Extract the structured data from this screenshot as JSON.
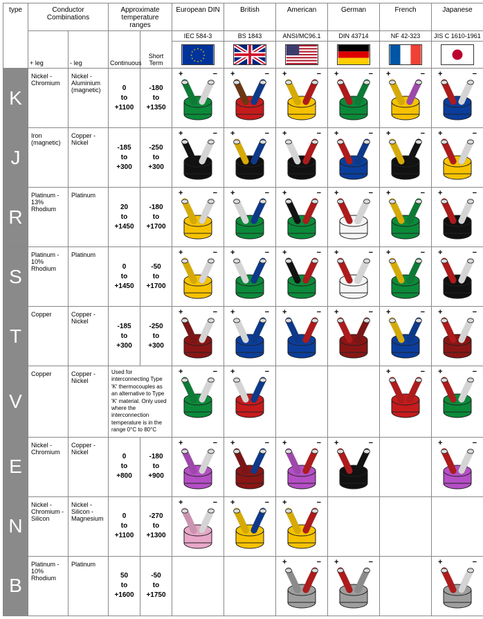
{
  "headers": {
    "type": "type",
    "conductor": "Conductor\nCombinations",
    "leg_pos": "+ leg",
    "leg_neg": "- leg",
    "temp": "Approximate\ntemperature\nranges",
    "temp_cont": "Continuous",
    "temp_short": "Short\nTerm",
    "standards": [
      {
        "name": "European DIN",
        "code": "IEC 584-3",
        "flag": "eu"
      },
      {
        "name": "British",
        "code": "BS 1843",
        "flag": "uk"
      },
      {
        "name": "American",
        "code": "ANSI/MC96.1",
        "flag": "us"
      },
      {
        "name": "German",
        "code": "DIN 43714",
        "flag": "de"
      },
      {
        "name": "French",
        "code": "NF 42-323",
        "flag": "fr"
      },
      {
        "name": "Japanese",
        "code": "JIS C 1610-1961",
        "flag": "jp"
      }
    ]
  },
  "colors": {
    "green": "#0b8a3a",
    "red": "#c61b1c",
    "darkred": "#8a1515",
    "yellow": "#f6c200",
    "blue": "#0b3e9c",
    "darkblue": "#0a2f6e",
    "black": "#111111",
    "white": "#f4f4f4",
    "brown": "#7a3b12",
    "orange": "#e06a00",
    "violet": "#b44fc4",
    "pink": "#e8a7c8",
    "grey": "#9e9e9e",
    "none": "transparent"
  },
  "flags": {
    "eu": {
      "bg": "#003399",
      "stars": "#ffcc00"
    },
    "uk": {
      "bg": "#00247d",
      "cross": "#ffffff",
      "red": "#cf142b"
    },
    "us": {
      "blue": "#3c3b6e",
      "red": "#b22234",
      "white": "#ffffff"
    },
    "de": {
      "top": "#000000",
      "mid": "#dd0000",
      "bot": "#ffce00"
    },
    "fr": {
      "l": "#0055a4",
      "m": "#ffffff",
      "r": "#ef4135"
    },
    "jp": {
      "bg": "#ffffff",
      "dot": "#bc002d"
    }
  },
  "rows": [
    {
      "type": "K",
      "cond_pos": "Nickel - Chromium",
      "cond_neg": "Nickel - Aluminium (magnetic)",
      "temp_cont": "0\nto\n+1100",
      "temp_short": "-180\nto\n+1350",
      "wires": [
        {
          "sheath": "green",
          "pos": "green",
          "neg": "white"
        },
        {
          "sheath": "red",
          "pos": "brown",
          "neg": "blue"
        },
        {
          "sheath": "yellow",
          "pos": "yellow",
          "neg": "red"
        },
        {
          "sheath": "green",
          "pos": "red",
          "neg": "green"
        },
        {
          "sheath": "yellow",
          "pos": "yellow",
          "neg": "violet"
        },
        {
          "sheath": "blue",
          "pos": "red",
          "neg": "white"
        }
      ]
    },
    {
      "type": "J",
      "cond_pos": "Iron (magnetic)",
      "cond_neg": "Copper - Nickel",
      "temp_cont": "-185\nto\n+300",
      "temp_short": "-250\nto\n+300",
      "wires": [
        {
          "sheath": "black",
          "pos": "black",
          "neg": "white"
        },
        {
          "sheath": "black",
          "pos": "yellow",
          "neg": "blue"
        },
        {
          "sheath": "black",
          "pos": "white",
          "neg": "red"
        },
        {
          "sheath": "blue",
          "pos": "red",
          "neg": "blue"
        },
        {
          "sheath": "black",
          "pos": "yellow",
          "neg": "black"
        },
        {
          "sheath": "yellow",
          "pos": "red",
          "neg": "white"
        }
      ]
    },
    {
      "type": "R",
      "cond_pos": "Platinum - 13% Rhodium",
      "cond_neg": "Platinum",
      "temp_cont": "20\nto\n+1450",
      "temp_short": "-180\nto\n+1700",
      "wires": [
        {
          "sheath": "yellow",
          "pos": "yellow",
          "neg": "white"
        },
        {
          "sheath": "green",
          "pos": "white",
          "neg": "blue"
        },
        {
          "sheath": "green",
          "pos": "black",
          "neg": "red"
        },
        {
          "sheath": "white",
          "pos": "red",
          "neg": "white"
        },
        {
          "sheath": "green",
          "pos": "yellow",
          "neg": "green"
        },
        {
          "sheath": "black",
          "pos": "red",
          "neg": "white"
        }
      ]
    },
    {
      "type": "S",
      "cond_pos": "Platinum - 10% Rhodium",
      "cond_neg": "Platinum",
      "temp_cont": "0\nto\n+1450",
      "temp_short": "-50\nto\n+1700",
      "wires": [
        {
          "sheath": "yellow",
          "pos": "yellow",
          "neg": "white"
        },
        {
          "sheath": "green",
          "pos": "white",
          "neg": "blue"
        },
        {
          "sheath": "green",
          "pos": "black",
          "neg": "red"
        },
        {
          "sheath": "white",
          "pos": "red",
          "neg": "white"
        },
        {
          "sheath": "green",
          "pos": "yellow",
          "neg": "green"
        },
        {
          "sheath": "black",
          "pos": "red",
          "neg": "white"
        }
      ]
    },
    {
      "type": "T",
      "cond_pos": "Copper",
      "cond_neg": "Copper - Nickel",
      "temp_cont": "-185\nto\n+300",
      "temp_short": "-250\nto\n+300",
      "wires": [
        {
          "sheath": "darkred",
          "pos": "darkred",
          "neg": "white"
        },
        {
          "sheath": "blue",
          "pos": "white",
          "neg": "blue"
        },
        {
          "sheath": "blue",
          "pos": "blue",
          "neg": "red"
        },
        {
          "sheath": "darkred",
          "pos": "red",
          "neg": "darkred"
        },
        {
          "sheath": "blue",
          "pos": "yellow",
          "neg": "blue"
        },
        {
          "sheath": "darkred",
          "pos": "red",
          "neg": "white"
        }
      ]
    },
    {
      "type": "V",
      "cond_pos": "Copper",
      "cond_neg": "Copper - Nickel",
      "temp_note": "Used for interconnecting Type 'K' thermocouples as an alternative to Type 'K' material. Only used where the interconnection temperature is in the range 0°C to 80°C",
      "wires": [
        {
          "sheath": "green",
          "pos": "green",
          "neg": "white"
        },
        {
          "sheath": "red",
          "pos": "white",
          "neg": "blue"
        },
        null,
        null,
        {
          "sheath": "red",
          "pos": "red",
          "neg": "red"
        },
        {
          "sheath": "green",
          "pos": "red",
          "neg": "white"
        }
      ]
    },
    {
      "type": "E",
      "cond_pos": "Nickel - Chromium",
      "cond_neg": "Copper - Nickel",
      "temp_cont": "0\nto\n+800",
      "temp_short": "-180\nto\n+900",
      "wires": [
        {
          "sheath": "violet",
          "pos": "violet",
          "neg": "white"
        },
        {
          "sheath": "darkred",
          "pos": "darkred",
          "neg": "blue"
        },
        {
          "sheath": "violet",
          "pos": "violet",
          "neg": "red"
        },
        {
          "sheath": "black",
          "pos": "red",
          "neg": "black"
        },
        null,
        {
          "sheath": "violet",
          "pos": "red",
          "neg": "white"
        }
      ]
    },
    {
      "type": "N",
      "cond_pos": "Nickel - Chromium - Silicon",
      "cond_neg": "Nickel - Silicon - Magnesium",
      "temp_cont": "0\nto\n+1100",
      "temp_short": "-270\nto\n+1300",
      "wires": [
        {
          "sheath": "pink",
          "pos": "pink",
          "neg": "white"
        },
        {
          "sheath": "yellow",
          "pos": "yellow",
          "neg": "blue"
        },
        {
          "sheath": "yellow",
          "pos": "yellow",
          "neg": "red"
        },
        null,
        null,
        null
      ]
    },
    {
      "type": "B",
      "cond_pos": "Platinum - 10% Rhodium",
      "cond_neg": "Platinum",
      "temp_cont": "50\nto\n+1600",
      "temp_short": "-50\nto\n+1750",
      "wires": [
        null,
        null,
        {
          "sheath": "grey",
          "pos": "grey",
          "neg": "red"
        },
        {
          "sheath": "grey",
          "pos": "red",
          "neg": "grey"
        },
        null,
        {
          "sheath": "grey",
          "pos": "red",
          "neg": "white"
        }
      ]
    }
  ]
}
